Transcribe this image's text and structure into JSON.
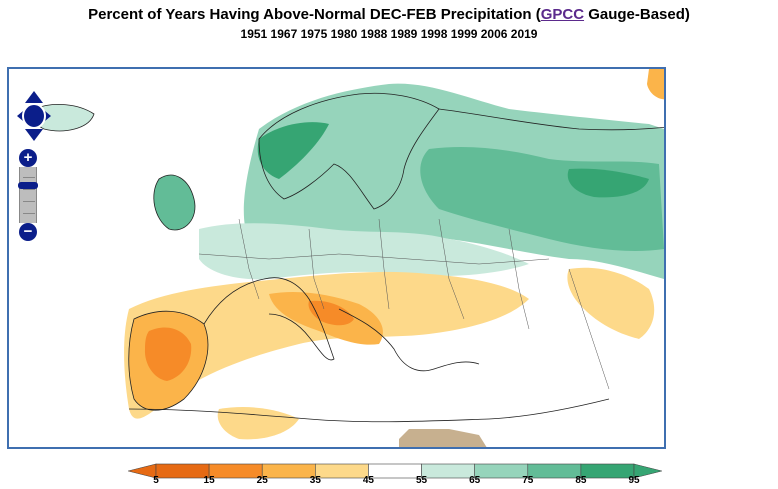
{
  "title": {
    "prefix": "Percent of Years Having Above-Normal DEC-FEB Precipitation (",
    "link": "GPCC",
    "suffix": " Gauge-Based)"
  },
  "subtitle": "1951 1967 1975 1980 1988 1989 1998 1999 2006 2019",
  "map": {
    "region": "Europe",
    "controls": {
      "pan": "pan-arrows-icon",
      "zoom_in": "+",
      "zoom_out": "−",
      "zoom_level": 0.3
    }
  },
  "legend": {
    "labels": [
      "5",
      "15",
      "25",
      "35",
      "45",
      "55",
      "65",
      "75",
      "85",
      "95"
    ],
    "colors": [
      "#e66a14",
      "#f68b28",
      "#fbb44a",
      "#fdd98a",
      "#ffffff",
      "#c9e9dc",
      "#96d4bb",
      "#62bc97",
      "#36a573"
    ],
    "low_arrow_color": "#e66a14",
    "high_arrow_color": "#36a573"
  }
}
